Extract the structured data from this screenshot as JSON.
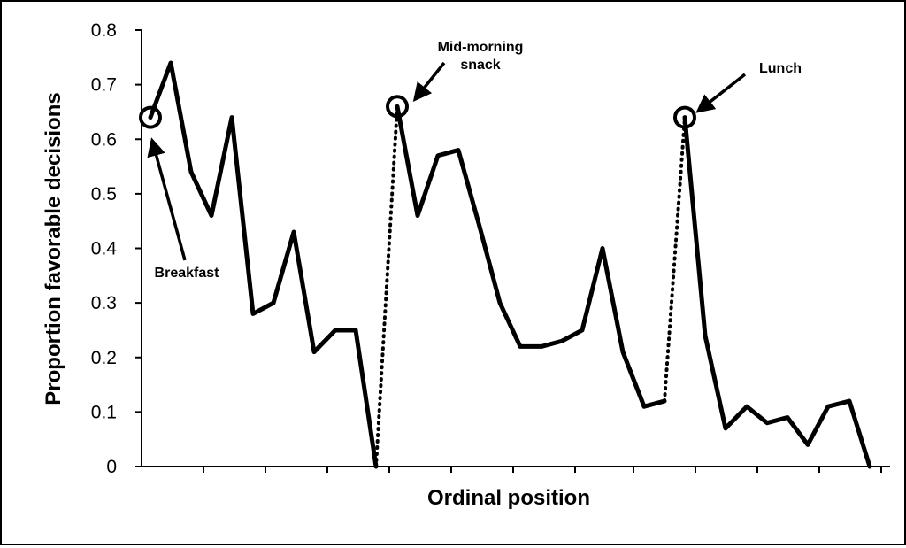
{
  "chart_data": {
    "type": "line",
    "xlabel": "Ordinal position",
    "ylabel": "Proportion favorable decisions",
    "ylim": [
      0,
      0.8
    ],
    "y_ticks": [
      "0",
      "0.1",
      "0.2",
      "0.3",
      "0.4",
      "0.5",
      "0.6",
      "0.7",
      "0.8"
    ],
    "grid": false,
    "legend": "none",
    "line_color": "#000000",
    "series": [
      {
        "values": [
          0.64,
          0.74,
          0.54,
          0.46,
          0.64,
          0.28,
          0.3,
          0.43,
          0.21,
          0.25,
          0.25,
          0.0
        ]
      },
      {
        "values": [
          0.66,
          0.46,
          0.57,
          0.58,
          0.44,
          0.3,
          0.22,
          0.22,
          0.23,
          0.25,
          0.4,
          0.21,
          0.11,
          0.12
        ]
      },
      {
        "values": [
          0.64,
          0.24,
          0.07,
          0.11,
          0.08,
          0.09,
          0.04,
          0.11,
          0.12,
          0.0
        ]
      }
    ],
    "breaks": [
      {
        "from": 0.0,
        "to": 0.66,
        "style": "dotted"
      },
      {
        "from": 0.12,
        "to": 0.64,
        "style": "dotted"
      }
    ],
    "highlighted_points": [
      {
        "series": 0,
        "index": 0
      },
      {
        "series": 1,
        "index": 0
      },
      {
        "series": 2,
        "index": 0
      }
    ],
    "annotations": [
      {
        "id": "breakfast",
        "lines": [
          "Breakfast"
        ],
        "series": 0
      },
      {
        "id": "snack",
        "lines": [
          "Mid-morning",
          "snack"
        ],
        "series": 1
      },
      {
        "id": "lunch",
        "lines": [
          "Lunch"
        ],
        "series": 2
      }
    ]
  }
}
